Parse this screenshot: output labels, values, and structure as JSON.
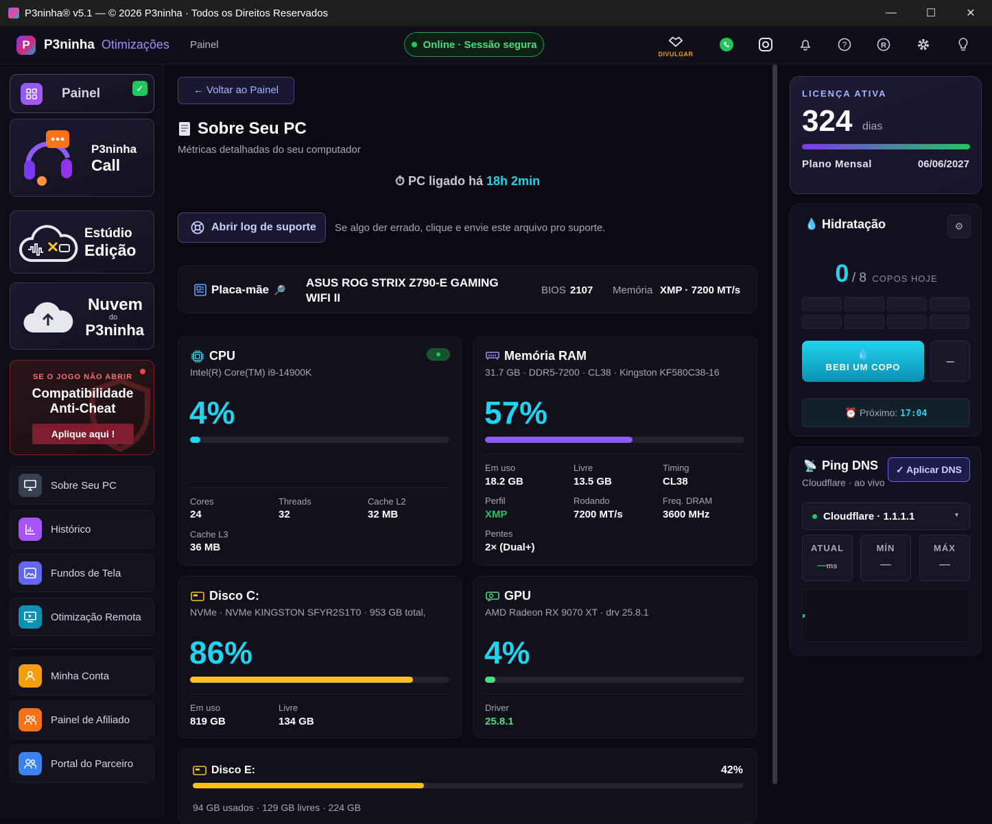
{
  "titlebar": {
    "title": "P3ninha® v5.1  —  © 2026 P3ninha · Todos os Direitos Reservados",
    "minimize": "—",
    "maximize": "☐",
    "close": "✕"
  },
  "header": {
    "brand": "P3ninha",
    "brand_sub": "Otimizações",
    "crumb": "Painel",
    "status": "Online · Sessão segura",
    "divulgar": "DIVULGAR"
  },
  "sidebar": {
    "painel": "Painel",
    "call": {
      "line1": "P3ninha",
      "line2": "Call"
    },
    "edicao": {
      "line1": "Estúdio",
      "line2": "Edição"
    },
    "nuvem": {
      "line1": "Nuvem",
      "line2": "do",
      "line3": "P3ninha"
    },
    "anticheat": {
      "kicker": "SE O JOGO NÃO ABRIR",
      "line1": "Compatibilidade",
      "line2": "Anti-Cheat",
      "cta": "Aplique aqui !"
    },
    "items": [
      {
        "label": "Sobre Seu PC",
        "color": "#374151"
      },
      {
        "label": "Histórico",
        "color": "#a855f7"
      },
      {
        "label": "Fundos de Tela",
        "color": "#6366f1"
      },
      {
        "label": "Otimização Remota",
        "color": "#06b6d4"
      },
      {
        "label": "Minha Conta",
        "color": "#f59e0b"
      },
      {
        "label": "Painel de Afiliado",
        "color": "#f97316"
      },
      {
        "label": "Portal do Parceiro",
        "color": "#3b82f6"
      }
    ]
  },
  "main": {
    "back": "← Voltar ao Painel",
    "title": "Sobre Seu PC",
    "subtitle": "Métricas detalhadas do seu computador",
    "uptime_label": "PC ligado há",
    "uptime_value": "18h 2min",
    "log_button": "Abrir log de suporte",
    "log_hint": "Se algo der errado, clique e envie este arquivo pro suporte.",
    "mobo": {
      "label": "Placa-mãe",
      "name": "ASUS ROG STRIX Z790-E GAMING WIFI II",
      "bios_label": "BIOS",
      "bios": "2107",
      "mem_label": "Memória",
      "mem": "XMP · 7200 MT/s"
    },
    "cpu": {
      "title": "CPU",
      "model": "Intel(R) Core(TM) i9-14900K",
      "usage": "4%",
      "usage_pct": 4,
      "stats": [
        {
          "l": "Cores",
          "v": "24"
        },
        {
          "l": "Threads",
          "v": "32"
        },
        {
          "l": "Cache L2",
          "v": "32 MB"
        },
        {
          "l": "Cache L3",
          "v": "36 MB"
        }
      ]
    },
    "ram": {
      "title": "Memória RAM",
      "model": "31.7 GB · DDR5-7200 · CL38 · Kingston KF580C38-16",
      "usage": "57%",
      "usage_pct": 57,
      "stats": [
        {
          "l": "Em uso",
          "v": "18.2 GB"
        },
        {
          "l": "Livre",
          "v": "13.5 GB"
        },
        {
          "l": "Timing",
          "v": "CL38"
        },
        {
          "l": "Perfil",
          "v": "XMP"
        },
        {
          "l": "Rodando",
          "v": "7200 MT/s"
        },
        {
          "l": "Freq. DRAM",
          "v": "3600 MHz"
        },
        {
          "l": "Pentes",
          "v": "2× (Dual+)"
        }
      ]
    },
    "diskc": {
      "title": "Disco C:",
      "model": "NVMe · NVMe KINGSTON SFYR2S1T0 · 953 GB total,",
      "usage": "86%",
      "usage_pct": 86,
      "stats": [
        {
          "l": "Em uso",
          "v": "819 GB"
        },
        {
          "l": "Livre",
          "v": "134 GB"
        }
      ]
    },
    "gpu": {
      "title": "GPU",
      "model": "AMD Radeon RX 9070 XT · drv 25.8.1",
      "usage": "4%",
      "usage_pct": 4,
      "stats": [
        {
          "l": "Driver",
          "v": "25.8.1"
        }
      ]
    },
    "diske": {
      "title": "Disco E:",
      "usage": "42%",
      "usage_pct": 42,
      "detail": "94 GB usados · 129 GB livres · 224 GB"
    }
  },
  "right": {
    "license": {
      "kicker": "LICENÇA ATIVA",
      "days": "324",
      "days_unit": "dias",
      "plan": "Plano Mensal",
      "expires": "06/06/2027"
    },
    "hydration": {
      "title": "Hidratação",
      "count": "0",
      "total": "/ 8",
      "unit": "COPOS HOJE",
      "button": "BEBI UM COPO",
      "minus": "–",
      "next_label": "Próximo:",
      "next_time": "17:04"
    },
    "ping": {
      "title": "Ping DNS",
      "subtitle": "Cloudflare · ao vivo",
      "apply": "✓ Aplicar DNS",
      "server": "Cloudflare · 1.1.1.1",
      "atual_label": "ATUAL",
      "atual_val": "—",
      "atual_unit": "ms",
      "min_label": "MÍN",
      "min_val": "—",
      "max_label": "MÁX",
      "max_val": "—"
    }
  }
}
